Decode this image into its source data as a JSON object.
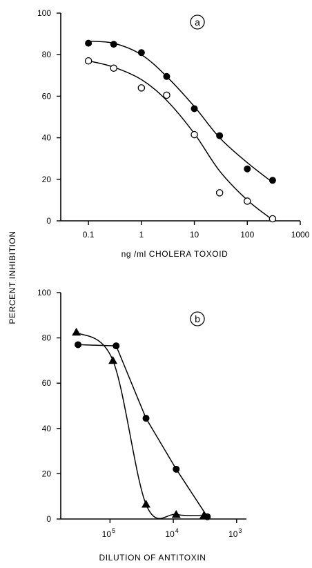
{
  "figure": {
    "shared_ylabel": "PERCENT INHIBITION"
  },
  "chart_data": [
    {
      "type": "line",
      "panel_label": "a",
      "xlabel": "ng /ml CHOLERA TOXOID",
      "ylabel": "PERCENT INHIBITION",
      "xscale": "log",
      "xlim": [
        0.03,
        1000
      ],
      "ylim": [
        0,
        100
      ],
      "xticks": [
        0.1,
        1,
        10,
        100,
        1000
      ],
      "xtick_labels": [
        "0.1",
        "1",
        "10",
        "100",
        "1000"
      ],
      "yticks": [
        0,
        20,
        40,
        60,
        80,
        100
      ],
      "ytick_labels": [
        "0",
        "20",
        "40",
        "60",
        "80",
        "100"
      ],
      "grid": false,
      "legend": "none",
      "series": [
        {
          "marker": "filled-circle",
          "color": "#000000",
          "x": [
            0.1,
            0.3,
            1,
            3,
            10,
            30,
            100,
            300
          ],
          "y": [
            85.5,
            85,
            81,
            69.5,
            54,
            41,
            25,
            19.5
          ],
          "curve_y": [
            86.5,
            85.5,
            80,
            69.5,
            55,
            40,
            28,
            18.5
          ]
        },
        {
          "marker": "open-circle",
          "color": "#000000",
          "x": [
            0.1,
            0.3,
            1,
            3,
            10,
            30,
            100,
            300
          ],
          "y": [
            77,
            73.5,
            64,
            60.5,
            41.5,
            13.5,
            9.5,
            1
          ],
          "curve_y": [
            77,
            74,
            68,
            58,
            42,
            24,
            10,
            0.5
          ]
        }
      ]
    },
    {
      "type": "line",
      "panel_label": "b",
      "xlabel": "DILUTION OF ANTITOXIN",
      "ylabel": "PERCENT INHIBITION",
      "xscale": "reciprocal-log",
      "xlim": [
        600000,
        700
      ],
      "ylim": [
        0,
        100
      ],
      "xticks": [
        100000,
        10000,
        1000
      ],
      "xtick_labels": [
        {
          "base": "10",
          "exp": "5"
        },
        {
          "base": "10",
          "exp": "4"
        },
        {
          "base": "10",
          "exp": "3"
        }
      ],
      "yticks": [
        0,
        20,
        40,
        60,
        80,
        100
      ],
      "ytick_labels": [
        "0",
        "20",
        "40",
        "60",
        "80",
        "100"
      ],
      "grid": false,
      "legend": "none",
      "series": [
        {
          "marker": "filled-circle",
          "color": "#000000",
          "x": [
            320000,
            80000,
            27000,
            9000,
            2900
          ],
          "y": [
            77,
            76.5,
            44.5,
            22,
            1
          ]
        },
        {
          "marker": "filled-triangle",
          "color": "#000000",
          "x": [
            340000,
            90000,
            27000,
            9000,
            3300
          ],
          "y": [
            82.5,
            70,
            6.5,
            2,
            1.5
          ]
        }
      ]
    }
  ]
}
